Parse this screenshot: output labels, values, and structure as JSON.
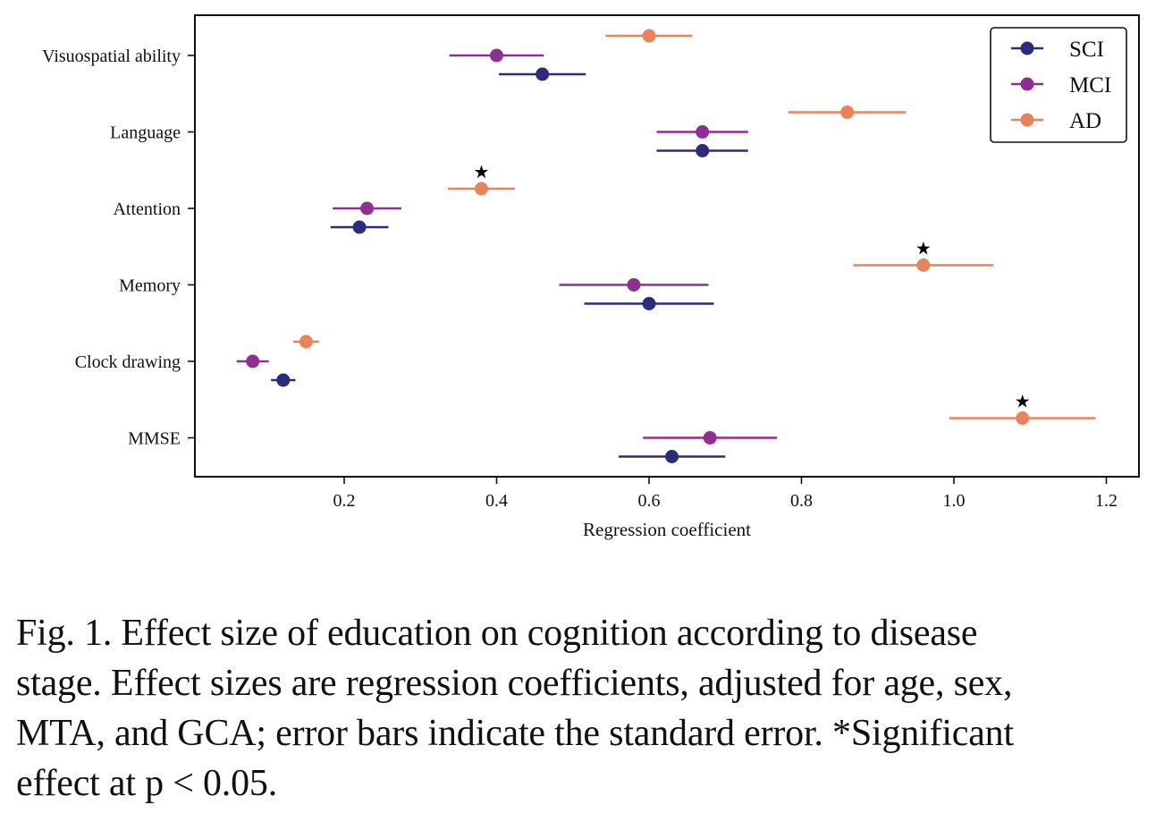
{
  "chart_data": {
    "type": "scatter",
    "subtype": "forest-plot-horizontal-errorbars",
    "xlabel": "Regression coefficient",
    "ylabel": "",
    "xlim": [
      0.0,
      1.22
    ],
    "xticks": [
      0.2,
      0.4,
      0.6,
      0.8,
      1.0,
      1.2
    ],
    "xtick_labels": [
      "0.2",
      "0.4",
      "0.6",
      "0.8",
      "1.0",
      "1.2"
    ],
    "categories": [
      "Visuospatial ability",
      "Language",
      "Attention",
      "Memory",
      "Clock drawing",
      "MMSE"
    ],
    "grid": false,
    "legend_position": "top-right",
    "series": [
      {
        "name": "SCI",
        "color": "#2b2c7c",
        "values": [
          0.46,
          0.67,
          0.22,
          0.6,
          0.12,
          0.63
        ],
        "errors": [
          0.057,
          0.06,
          0.038,
          0.085,
          0.016,
          0.07
        ],
        "significant": [
          false,
          false,
          false,
          false,
          false,
          false
        ]
      },
      {
        "name": "MCI",
        "color": "#8e2f93",
        "values": [
          0.4,
          0.67,
          0.23,
          0.58,
          0.08,
          0.68
        ],
        "errors": [
          0.062,
          0.06,
          0.045,
          0.098,
          0.021,
          0.088
        ],
        "significant": [
          false,
          false,
          false,
          false,
          false,
          false
        ]
      },
      {
        "name": "AD",
        "color": "#e8845a",
        "values": [
          0.6,
          0.86,
          0.38,
          0.96,
          0.15,
          1.09
        ],
        "errors": [
          0.057,
          0.077,
          0.044,
          0.092,
          0.017,
          0.096
        ],
        "significant": [
          false,
          false,
          true,
          true,
          false,
          true
        ]
      }
    ],
    "significance_marker": "★"
  },
  "caption": {
    "lines": [
      "Fig. 1.  Effect size of education on cognition according to disease",
      "stage. Effect sizes are regression coefficients, adjusted for age, sex,",
      "MTA, and GCA; error bars indicate the standard error. *Significant",
      "effect at p < 0.05."
    ]
  }
}
